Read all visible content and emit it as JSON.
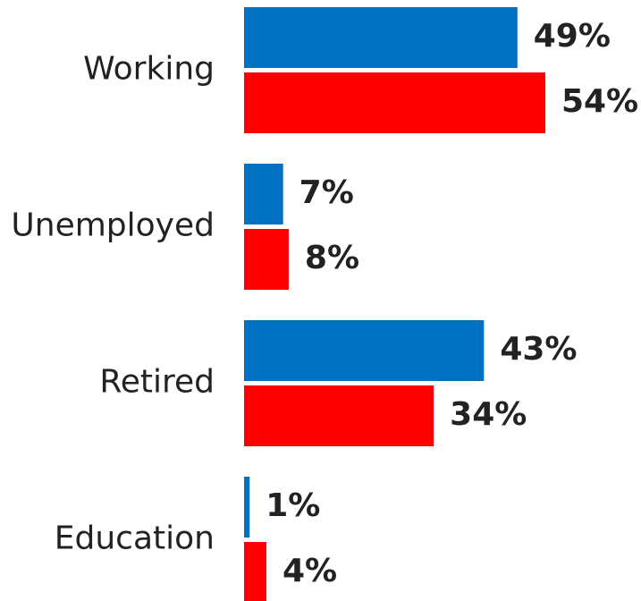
{
  "colors": {
    "series_1": "#0070c0",
    "series_2": "#ff0000",
    "text": "#222222",
    "background": "#ffffff"
  },
  "chart_data": {
    "type": "bar",
    "orientation": "horizontal",
    "categories": [
      "Working",
      "Unemployed",
      "Retired",
      "Education"
    ],
    "series": [
      {
        "values": [
          49,
          7,
          43,
          1
        ],
        "labels": [
          "49%",
          "7%",
          "43%",
          "1%"
        ],
        "color": "#0070c0"
      },
      {
        "values": [
          54,
          8,
          34,
          4
        ],
        "labels": [
          "54%",
          "8%",
          "34%",
          "4%"
        ],
        "color": "#ff0000"
      }
    ],
    "unit": "%",
    "xlim": [
      0,
      100
    ],
    "grid": false,
    "legend": "none",
    "axes_visible": false
  }
}
